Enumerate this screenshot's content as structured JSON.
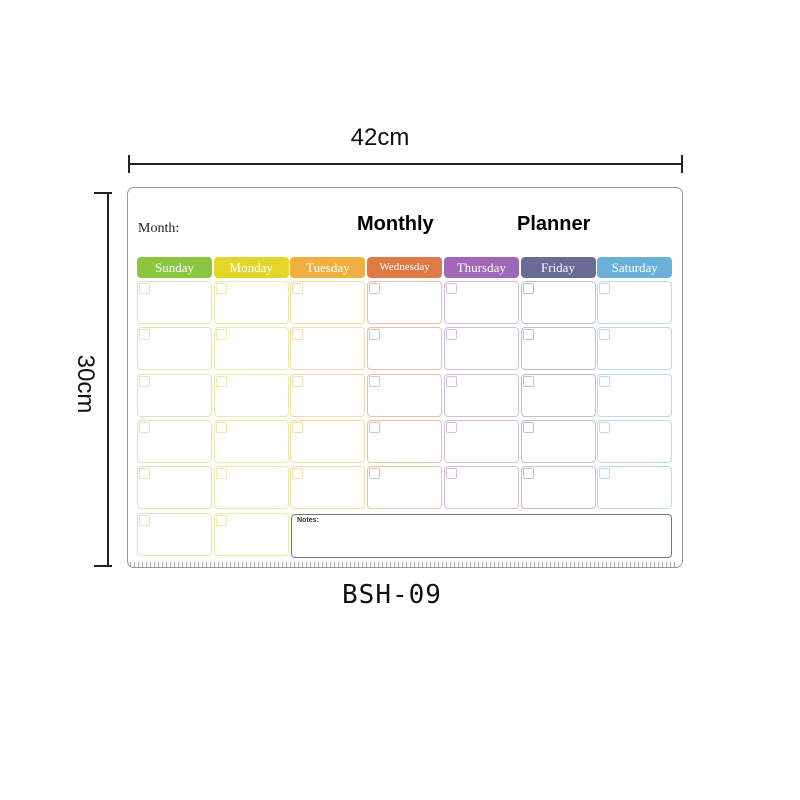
{
  "dimensions": {
    "width": "42cm",
    "height": "30cm"
  },
  "planner": {
    "month_label": "Month:",
    "title_word1": "Monthly",
    "title_word2": "Planner",
    "days": [
      {
        "label": "Sunday",
        "color": "#8cc63f",
        "light": "#d6e9b8"
      },
      {
        "label": "Monday",
        "color": "#e3d52a",
        "light": "#ede9a8"
      },
      {
        "label": "Tuesday",
        "color": "#f0b040",
        "light": "#f3dcaa"
      },
      {
        "label": "Wednesday",
        "color": "#e07a45",
        "light": "#ecbfa8"
      },
      {
        "label": "Thursday",
        "color": "#a066b8",
        "light": "#d6bde0"
      },
      {
        "label": "Friday",
        "color": "#6a6a96",
        "light": "#bfbfd2"
      },
      {
        "label": "Saturday",
        "color": "#6ab0d8",
        "light": "#bcdcee"
      }
    ],
    "notes_label": "Notes:"
  },
  "model": "BSH-09"
}
